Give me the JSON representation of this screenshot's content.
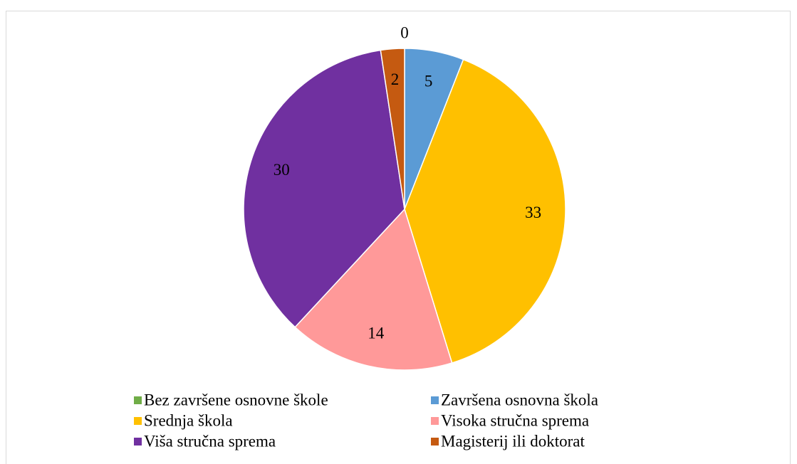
{
  "chart_data": {
    "type": "pie",
    "categories": [
      "Bez završene osnovne škole",
      "Završena osnovna škola",
      "Srednja škola",
      "Visoka stručna sprema",
      "Viša stručna sprema",
      "Magisterij ili doktorat"
    ],
    "values": [
      0,
      5,
      33,
      14,
      30,
      2
    ],
    "colors": [
      "#70ad47",
      "#5b9bd5",
      "#ffc000",
      "#ff9999",
      "#7030a0",
      "#c55a11"
    ],
    "legend": "bottom"
  }
}
